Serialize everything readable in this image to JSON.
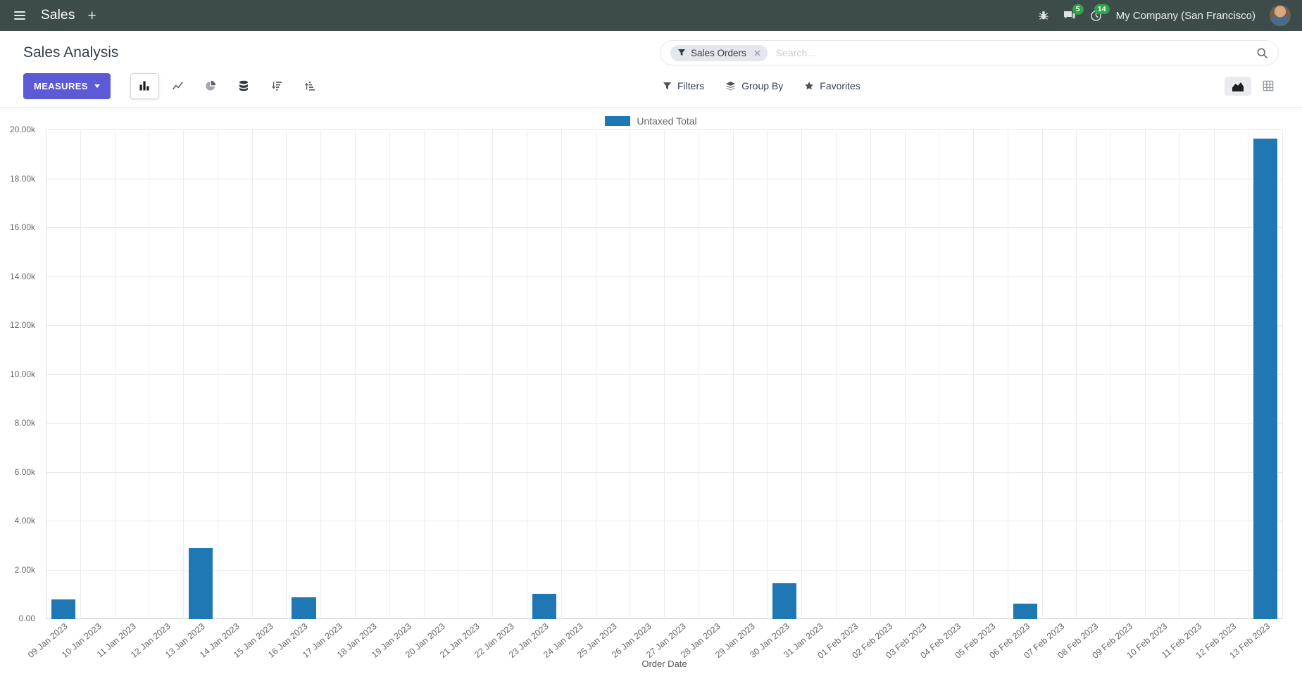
{
  "navbar": {
    "app_name": "Sales",
    "company": "My Company (San Francisco)",
    "message_badge": "5",
    "activity_badge": "14"
  },
  "control_panel": {
    "title": "Sales Analysis",
    "measures_label": "MEASURES",
    "search": {
      "facet": "Sales Orders",
      "placeholder": "Search..."
    },
    "buttons": {
      "filters": "Filters",
      "group_by": "Group By",
      "favorites": "Favorites"
    }
  },
  "chart_data": {
    "type": "bar",
    "title": "",
    "xlabel": "Order Date",
    "ylabel": "",
    "legend": [
      "Untaxed Total"
    ],
    "legend_position": "top-center",
    "grid": true,
    "bar_color": "#1f77b4",
    "ylim": [
      0,
      20000
    ],
    "y_ticks": [
      {
        "value": 0,
        "label": "0.00"
      },
      {
        "value": 2000,
        "label": "2.00k"
      },
      {
        "value": 4000,
        "label": "4.00k"
      },
      {
        "value": 6000,
        "label": "6.00k"
      },
      {
        "value": 8000,
        "label": "8.00k"
      },
      {
        "value": 10000,
        "label": "10.00k"
      },
      {
        "value": 12000,
        "label": "12.00k"
      },
      {
        "value": 14000,
        "label": "14.00k"
      },
      {
        "value": 16000,
        "label": "16.00k"
      },
      {
        "value": 18000,
        "label": "18.00k"
      },
      {
        "value": 20000,
        "label": "20.00k"
      }
    ],
    "categories": [
      "09 Jan 2023",
      "10 Jan 2023",
      "11 Jan 2023",
      "12 Jan 2023",
      "13 Jan 2023",
      "14 Jan 2023",
      "15 Jan 2023",
      "16 Jan 2023",
      "17 Jan 2023",
      "18 Jan 2023",
      "19 Jan 2023",
      "20 Jan 2023",
      "21 Jan 2023",
      "22 Jan 2023",
      "23 Jan 2023",
      "24 Jan 2023",
      "25 Jan 2023",
      "26 Jan 2023",
      "27 Jan 2023",
      "28 Jan 2023",
      "29 Jan 2023",
      "30 Jan 2023",
      "31 Jan 2023",
      "01 Feb 2023",
      "02 Feb 2023",
      "03 Feb 2023",
      "04 Feb 2023",
      "05 Feb 2023",
      "06 Feb 2023",
      "07 Feb 2023",
      "08 Feb 2023",
      "09 Feb 2023",
      "10 Feb 2023",
      "11 Feb 2023",
      "12 Feb 2023",
      "13 Feb 2023"
    ],
    "values": [
      800,
      0,
      0,
      0,
      2900,
      0,
      0,
      900,
      0,
      0,
      0,
      0,
      0,
      0,
      1050,
      0,
      0,
      0,
      0,
      0,
      0,
      1480,
      0,
      0,
      0,
      0,
      0,
      0,
      620,
      0,
      0,
      0,
      0,
      0,
      0,
      19650
    ]
  }
}
